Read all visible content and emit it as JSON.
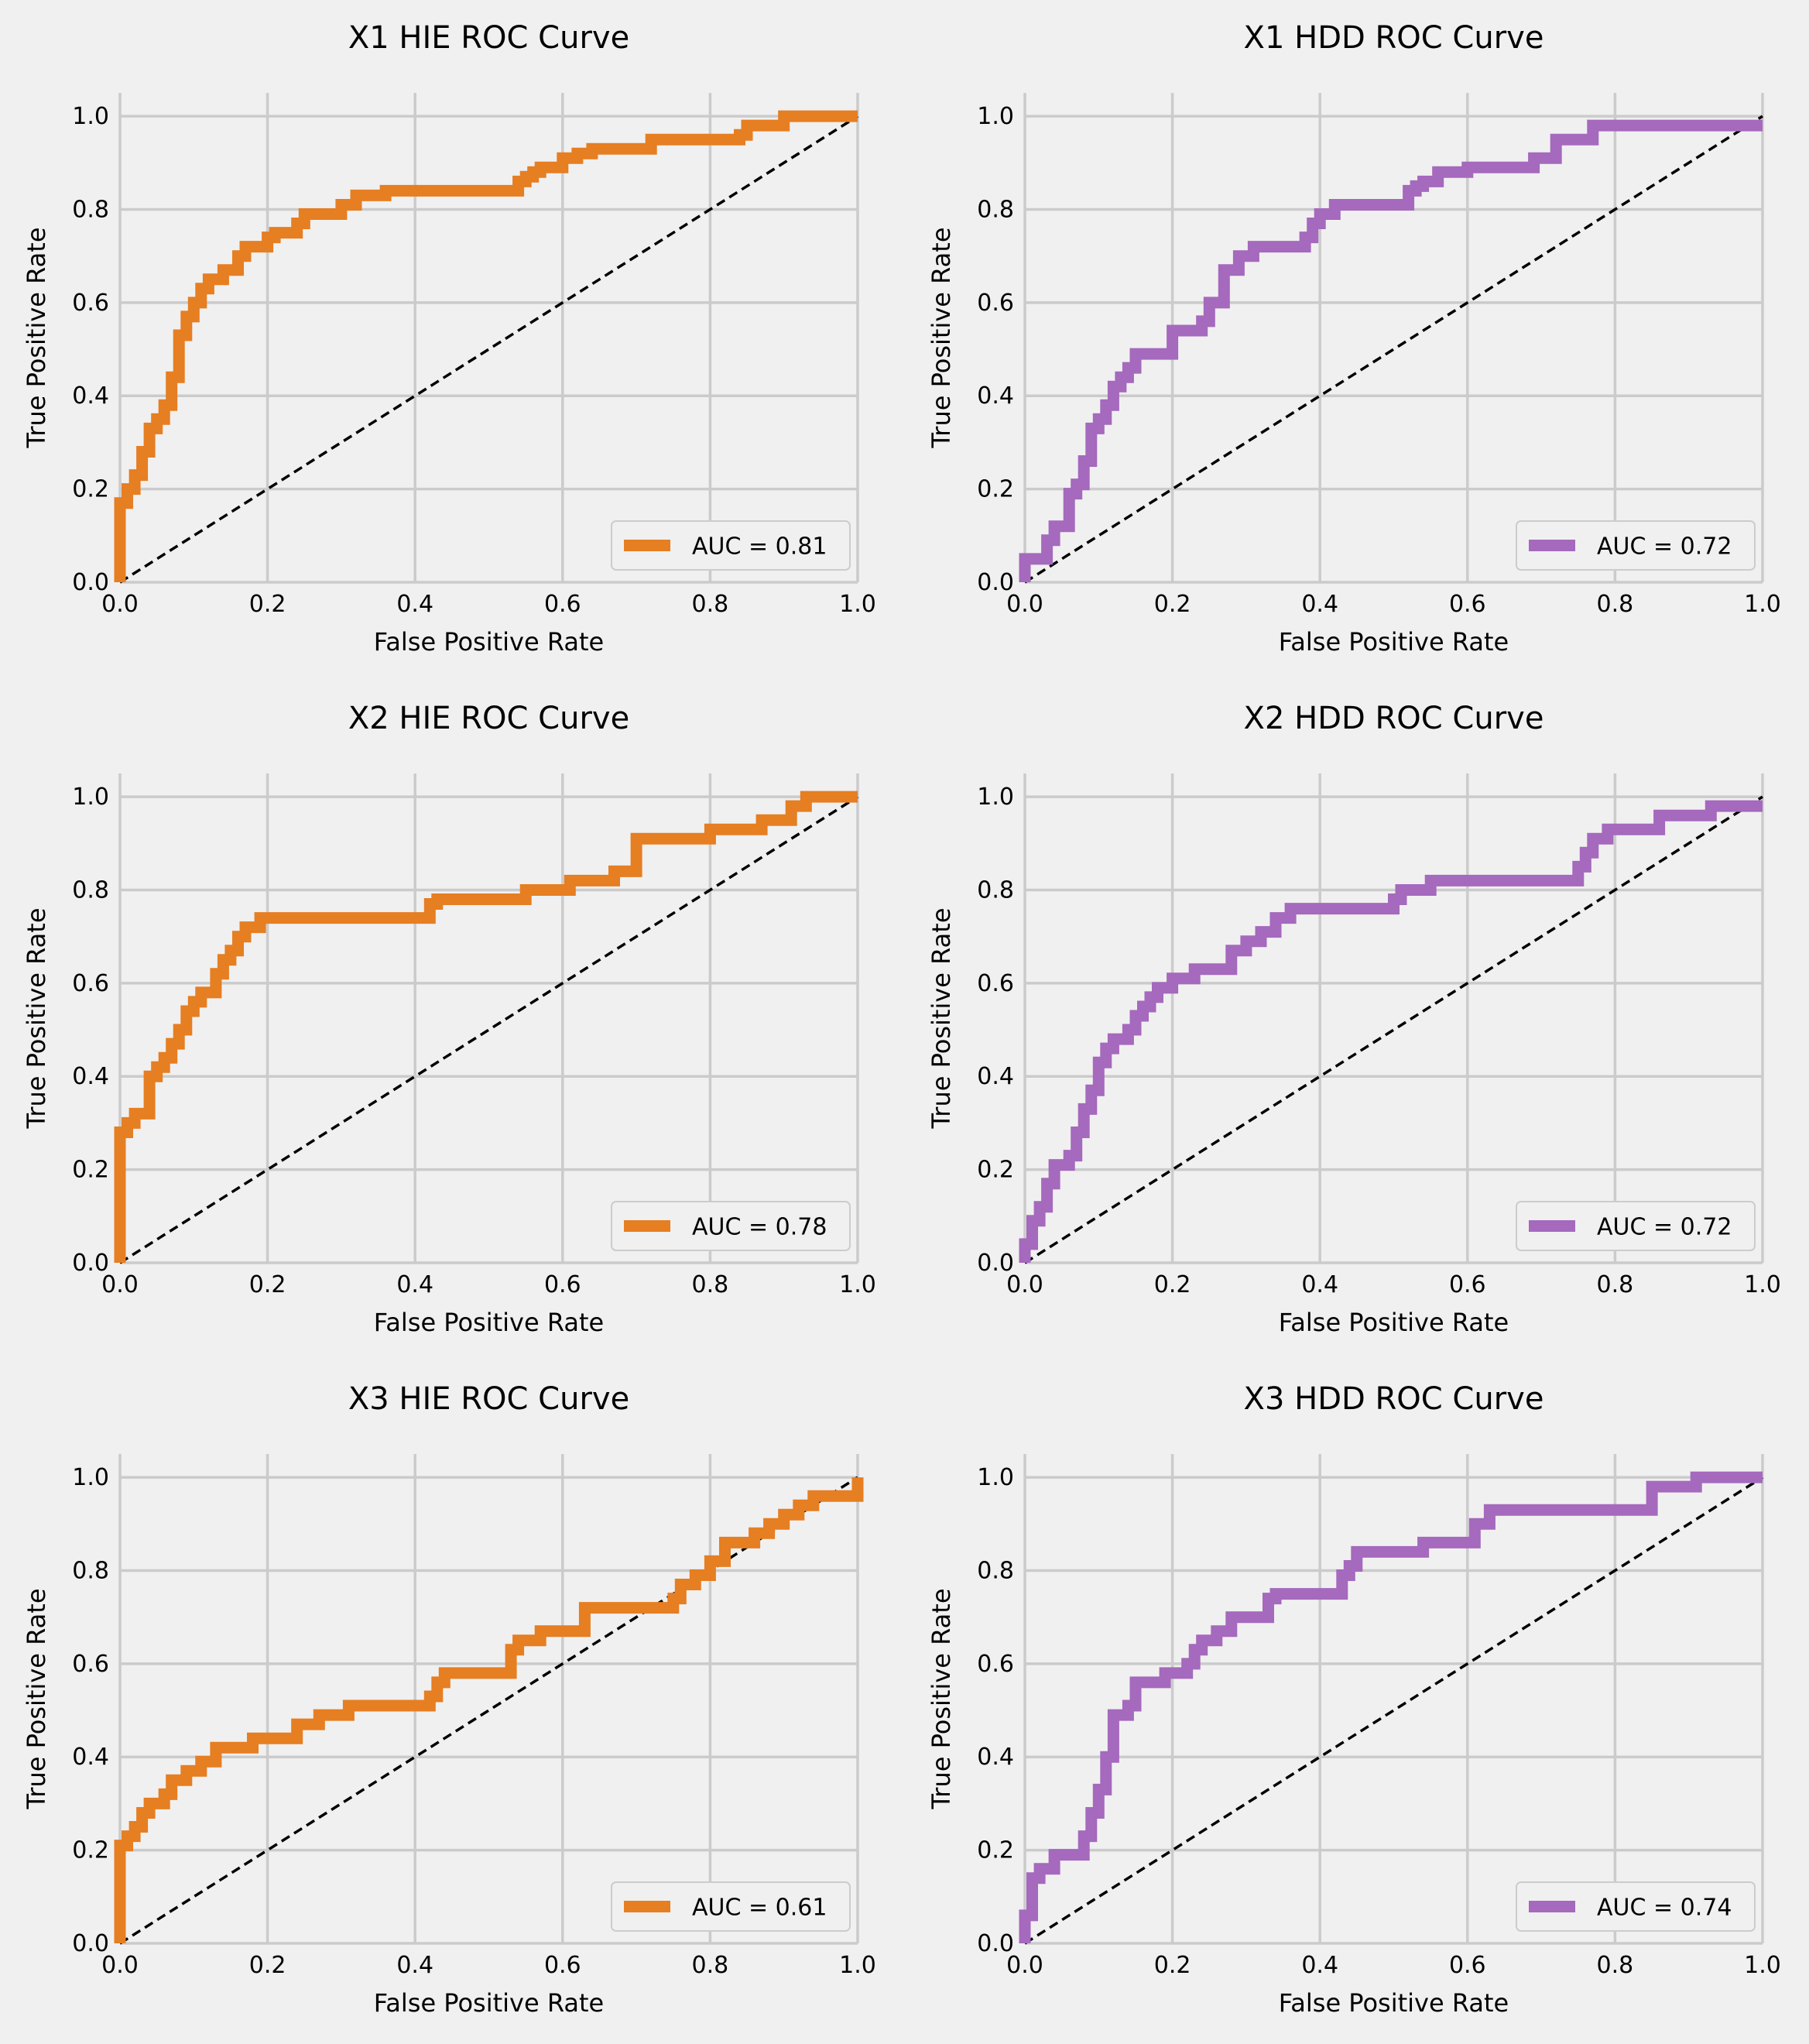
{
  "figure": {
    "background": "#f0f0f0",
    "grid_color": "#cbcbcb"
  },
  "chart_data": [
    {
      "type": "line",
      "title": "X1 HIE ROC Curve",
      "xlabel": "False Positive Rate",
      "ylabel": "True Positive Rate",
      "xlim": [
        0,
        1
      ],
      "ylim": [
        0,
        1.05
      ],
      "xticks": [
        "0.0",
        "0.2",
        "0.4",
        "0.6",
        "0.8",
        "1.0"
      ],
      "yticks": [
        "0.0",
        "0.2",
        "0.4",
        "0.6",
        "0.8",
        "1.0"
      ],
      "grid": true,
      "legend_position": "lower-right",
      "series": [
        {
          "name": "AUC = 0.81",
          "color": "#e67e22",
          "x": [
            0,
            0,
            0.01,
            0.01,
            0.02,
            0.02,
            0.03,
            0.03,
            0.04,
            0.04,
            0.05,
            0.05,
            0.06,
            0.06,
            0.07,
            0.07,
            0.08,
            0.08,
            0.09,
            0.09,
            0.1,
            0.1,
            0.11,
            0.11,
            0.12,
            0.12,
            0.14,
            0.14,
            0.16,
            0.16,
            0.17,
            0.17,
            0.2,
            0.2,
            0.21,
            0.21,
            0.24,
            0.24,
            0.25,
            0.25,
            0.3,
            0.3,
            0.32,
            0.32,
            0.36,
            0.36,
            0.54,
            0.54,
            0.55,
            0.55,
            0.56,
            0.56,
            0.57,
            0.57,
            0.6,
            0.6,
            0.62,
            0.62,
            0.64,
            0.64,
            0.72,
            0.72,
            0.84,
            0.84,
            0.85,
            0.85,
            0.9,
            0.9,
            1.0
          ],
          "y": [
            0,
            0.17,
            0.17,
            0.2,
            0.2,
            0.23,
            0.23,
            0.28,
            0.28,
            0.33,
            0.33,
            0.35,
            0.35,
            0.38,
            0.38,
            0.44,
            0.44,
            0.53,
            0.53,
            0.57,
            0.57,
            0.6,
            0.6,
            0.63,
            0.63,
            0.65,
            0.65,
            0.67,
            0.67,
            0.7,
            0.7,
            0.72,
            0.72,
            0.74,
            0.74,
            0.75,
            0.75,
            0.77,
            0.77,
            0.79,
            0.79,
            0.81,
            0.81,
            0.83,
            0.83,
            0.84,
            0.84,
            0.86,
            0.86,
            0.87,
            0.87,
            0.88,
            0.88,
            0.89,
            0.89,
            0.91,
            0.91,
            0.92,
            0.92,
            0.93,
            0.93,
            0.95,
            0.95,
            0.96,
            0.96,
            0.98,
            0.98,
            1.0,
            1.0
          ]
        }
      ]
    },
    {
      "type": "line",
      "title": "X1 HDD ROC Curve",
      "xlabel": "False Positive Rate",
      "ylabel": "True Positive Rate",
      "xlim": [
        0,
        1
      ],
      "ylim": [
        0,
        1.05
      ],
      "xticks": [
        "0.0",
        "0.2",
        "0.4",
        "0.6",
        "0.8",
        "1.0"
      ],
      "yticks": [
        "0.0",
        "0.2",
        "0.4",
        "0.6",
        "0.8",
        "1.0"
      ],
      "grid": true,
      "legend_position": "lower-right",
      "series": [
        {
          "name": "AUC = 0.72",
          "color": "#a569bd",
          "x": [
            0,
            0,
            0.03,
            0.03,
            0.04,
            0.04,
            0.06,
            0.06,
            0.07,
            0.07,
            0.08,
            0.08,
            0.09,
            0.09,
            0.1,
            0.1,
            0.11,
            0.11,
            0.12,
            0.12,
            0.13,
            0.13,
            0.14,
            0.14,
            0.15,
            0.15,
            0.2,
            0.2,
            0.24,
            0.24,
            0.25,
            0.25,
            0.27,
            0.27,
            0.29,
            0.29,
            0.31,
            0.31,
            0.38,
            0.38,
            0.39,
            0.39,
            0.4,
            0.4,
            0.42,
            0.42,
            0.52,
            0.52,
            0.53,
            0.53,
            0.54,
            0.54,
            0.56,
            0.56,
            0.6,
            0.6,
            0.69,
            0.69,
            0.72,
            0.72,
            0.77,
            0.77,
            0.96,
            0.96,
            1.0
          ],
          "y": [
            0,
            0.05,
            0.05,
            0.09,
            0.09,
            0.12,
            0.12,
            0.19,
            0.19,
            0.21,
            0.21,
            0.26,
            0.26,
            0.33,
            0.33,
            0.35,
            0.35,
            0.38,
            0.38,
            0.42,
            0.42,
            0.44,
            0.44,
            0.46,
            0.46,
            0.49,
            0.49,
            0.54,
            0.54,
            0.56,
            0.56,
            0.6,
            0.6,
            0.67,
            0.67,
            0.7,
            0.7,
            0.72,
            0.72,
            0.74,
            0.74,
            0.77,
            0.77,
            0.79,
            0.79,
            0.81,
            0.81,
            0.84,
            0.84,
            0.85,
            0.85,
            0.86,
            0.86,
            0.88,
            0.88,
            0.89,
            0.89,
            0.91,
            0.91,
            0.95,
            0.95,
            0.98,
            0.98,
            0.98,
            0.98
          ]
        }
      ]
    },
    {
      "type": "line",
      "title": "X2 HIE ROC Curve",
      "xlabel": "False Positive Rate",
      "ylabel": "True Positive Rate",
      "xlim": [
        0,
        1
      ],
      "ylim": [
        0,
        1.05
      ],
      "xticks": [
        "0.0",
        "0.2",
        "0.4",
        "0.6",
        "0.8",
        "1.0"
      ],
      "yticks": [
        "0.0",
        "0.2",
        "0.4",
        "0.6",
        "0.8",
        "1.0"
      ],
      "grid": true,
      "legend_position": "lower-right",
      "series": [
        {
          "name": "AUC = 0.78",
          "color": "#e67e22",
          "x": [
            0,
            0,
            0.01,
            0.01,
            0.02,
            0.02,
            0.04,
            0.04,
            0.05,
            0.05,
            0.06,
            0.06,
            0.07,
            0.07,
            0.08,
            0.08,
            0.09,
            0.09,
            0.1,
            0.1,
            0.11,
            0.11,
            0.13,
            0.13,
            0.14,
            0.14,
            0.15,
            0.15,
            0.16,
            0.16,
            0.17,
            0.17,
            0.19,
            0.19,
            0.42,
            0.42,
            0.43,
            0.43,
            0.55,
            0.55,
            0.61,
            0.61,
            0.67,
            0.67,
            0.7,
            0.7,
            0.8,
            0.8,
            0.87,
            0.87,
            0.91,
            0.91,
            0.93,
            0.93,
            1.0
          ],
          "y": [
            0,
            0.28,
            0.28,
            0.3,
            0.3,
            0.32,
            0.32,
            0.4,
            0.4,
            0.42,
            0.42,
            0.44,
            0.44,
            0.47,
            0.47,
            0.5,
            0.5,
            0.54,
            0.54,
            0.56,
            0.56,
            0.58,
            0.58,
            0.62,
            0.62,
            0.65,
            0.65,
            0.67,
            0.67,
            0.7,
            0.7,
            0.72,
            0.72,
            0.74,
            0.74,
            0.77,
            0.77,
            0.78,
            0.78,
            0.8,
            0.8,
            0.82,
            0.82,
            0.84,
            0.84,
            0.91,
            0.91,
            0.93,
            0.93,
            0.95,
            0.95,
            0.98,
            0.98,
            1.0,
            1.0
          ]
        }
      ]
    },
    {
      "type": "line",
      "title": "X2 HDD ROC Curve",
      "xlabel": "False Positive Rate",
      "ylabel": "True Positive Rate",
      "xlim": [
        0,
        1
      ],
      "ylim": [
        0,
        1.05
      ],
      "xticks": [
        "0.0",
        "0.2",
        "0.4",
        "0.6",
        "0.8",
        "1.0"
      ],
      "yticks": [
        "0.0",
        "0.2",
        "0.4",
        "0.6",
        "0.8",
        "1.0"
      ],
      "grid": true,
      "legend_position": "lower-right",
      "series": [
        {
          "name": "AUC = 0.72",
          "color": "#a569bd",
          "x": [
            0,
            0,
            0.01,
            0.01,
            0.02,
            0.02,
            0.03,
            0.03,
            0.04,
            0.04,
            0.06,
            0.06,
            0.07,
            0.07,
            0.08,
            0.08,
            0.09,
            0.09,
            0.1,
            0.1,
            0.11,
            0.11,
            0.12,
            0.12,
            0.14,
            0.14,
            0.15,
            0.15,
            0.16,
            0.16,
            0.17,
            0.17,
            0.18,
            0.18,
            0.2,
            0.2,
            0.23,
            0.23,
            0.28,
            0.28,
            0.3,
            0.3,
            0.32,
            0.32,
            0.34,
            0.34,
            0.36,
            0.36,
            0.5,
            0.5,
            0.51,
            0.51,
            0.55,
            0.55,
            0.75,
            0.75,
            0.76,
            0.76,
            0.77,
            0.77,
            0.79,
            0.79,
            0.86,
            0.86,
            0.93,
            0.93,
            1.0
          ],
          "y": [
            0,
            0.04,
            0.04,
            0.09,
            0.09,
            0.12,
            0.12,
            0.17,
            0.17,
            0.21,
            0.21,
            0.23,
            0.23,
            0.28,
            0.28,
            0.33,
            0.33,
            0.37,
            0.37,
            0.43,
            0.43,
            0.46,
            0.46,
            0.48,
            0.48,
            0.5,
            0.5,
            0.53,
            0.53,
            0.55,
            0.55,
            0.57,
            0.57,
            0.59,
            0.59,
            0.61,
            0.61,
            0.63,
            0.63,
            0.67,
            0.67,
            0.69,
            0.69,
            0.71,
            0.71,
            0.74,
            0.74,
            0.76,
            0.76,
            0.78,
            0.78,
            0.8,
            0.8,
            0.82,
            0.82,
            0.85,
            0.85,
            0.88,
            0.88,
            0.91,
            0.91,
            0.93,
            0.93,
            0.96,
            0.96,
            0.98,
            0.98
          ]
        }
      ]
    },
    {
      "type": "line",
      "title": "X3 HIE ROC Curve",
      "xlabel": "False Positive Rate",
      "ylabel": "True Positive Rate",
      "xlim": [
        0,
        1
      ],
      "ylim": [
        0,
        1.05
      ],
      "xticks": [
        "0.0",
        "0.2",
        "0.4",
        "0.6",
        "0.8",
        "1.0"
      ],
      "yticks": [
        "0.0",
        "0.2",
        "0.4",
        "0.6",
        "0.8",
        "1.0"
      ],
      "grid": true,
      "legend_position": "lower-right",
      "series": [
        {
          "name": "AUC = 0.61",
          "color": "#e67e22",
          "x": [
            0,
            0,
            0.01,
            0.01,
            0.02,
            0.02,
            0.03,
            0.03,
            0.04,
            0.04,
            0.06,
            0.06,
            0.07,
            0.07,
            0.09,
            0.09,
            0.11,
            0.11,
            0.13,
            0.13,
            0.18,
            0.18,
            0.24,
            0.24,
            0.27,
            0.27,
            0.31,
            0.31,
            0.42,
            0.42,
            0.43,
            0.43,
            0.44,
            0.44,
            0.53,
            0.53,
            0.54,
            0.54,
            0.57,
            0.57,
            0.63,
            0.63,
            0.75,
            0.75,
            0.76,
            0.76,
            0.78,
            0.78,
            0.8,
            0.8,
            0.82,
            0.82,
            0.86,
            0.86,
            0.88,
            0.88,
            0.9,
            0.9,
            0.92,
            0.92,
            0.94,
            0.94,
            1.0,
            1.0
          ],
          "y": [
            0,
            0.21,
            0.21,
            0.23,
            0.23,
            0.25,
            0.25,
            0.28,
            0.28,
            0.3,
            0.3,
            0.32,
            0.32,
            0.35,
            0.35,
            0.37,
            0.37,
            0.39,
            0.39,
            0.42,
            0.42,
            0.44,
            0.44,
            0.47,
            0.47,
            0.49,
            0.49,
            0.51,
            0.51,
            0.53,
            0.53,
            0.56,
            0.56,
            0.58,
            0.58,
            0.63,
            0.63,
            0.65,
            0.65,
            0.67,
            0.67,
            0.72,
            0.72,
            0.74,
            0.74,
            0.77,
            0.77,
            0.79,
            0.79,
            0.82,
            0.82,
            0.86,
            0.86,
            0.88,
            0.88,
            0.9,
            0.9,
            0.92,
            0.92,
            0.94,
            0.94,
            0.96,
            0.96,
            1.0
          ]
        }
      ]
    },
    {
      "type": "line",
      "title": "X3 HDD ROC Curve",
      "xlabel": "False Positive Rate",
      "ylabel": "True Positive Rate",
      "xlim": [
        0,
        1
      ],
      "ylim": [
        0,
        1.05
      ],
      "xticks": [
        "0.0",
        "0.2",
        "0.4",
        "0.6",
        "0.8",
        "1.0"
      ],
      "yticks": [
        "0.0",
        "0.2",
        "0.4",
        "0.6",
        "0.8",
        "1.0"
      ],
      "grid": true,
      "legend_position": "lower-right",
      "series": [
        {
          "name": "AUC = 0.74",
          "color": "#a569bd",
          "x": [
            0,
            0,
            0.01,
            0.01,
            0.02,
            0.02,
            0.04,
            0.04,
            0.08,
            0.08,
            0.09,
            0.09,
            0.1,
            0.1,
            0.11,
            0.11,
            0.12,
            0.12,
            0.14,
            0.14,
            0.15,
            0.15,
            0.19,
            0.19,
            0.22,
            0.22,
            0.23,
            0.23,
            0.24,
            0.24,
            0.26,
            0.26,
            0.28,
            0.28,
            0.33,
            0.33,
            0.34,
            0.34,
            0.43,
            0.43,
            0.44,
            0.44,
            0.45,
            0.45,
            0.54,
            0.54,
            0.61,
            0.61,
            0.63,
            0.63,
            0.85,
            0.85,
            0.91,
            0.91,
            1.0
          ],
          "y": [
            0,
            0.06,
            0.06,
            0.14,
            0.14,
            0.16,
            0.16,
            0.19,
            0.19,
            0.23,
            0.23,
            0.28,
            0.28,
            0.33,
            0.33,
            0.4,
            0.4,
            0.49,
            0.49,
            0.51,
            0.51,
            0.56,
            0.56,
            0.58,
            0.58,
            0.6,
            0.6,
            0.63,
            0.63,
            0.65,
            0.65,
            0.67,
            0.67,
            0.7,
            0.7,
            0.74,
            0.74,
            0.75,
            0.75,
            0.79,
            0.79,
            0.81,
            0.81,
            0.84,
            0.84,
            0.86,
            0.86,
            0.9,
            0.9,
            0.93,
            0.93,
            0.98,
            0.98,
            1.0,
            1.0
          ]
        }
      ]
    }
  ]
}
